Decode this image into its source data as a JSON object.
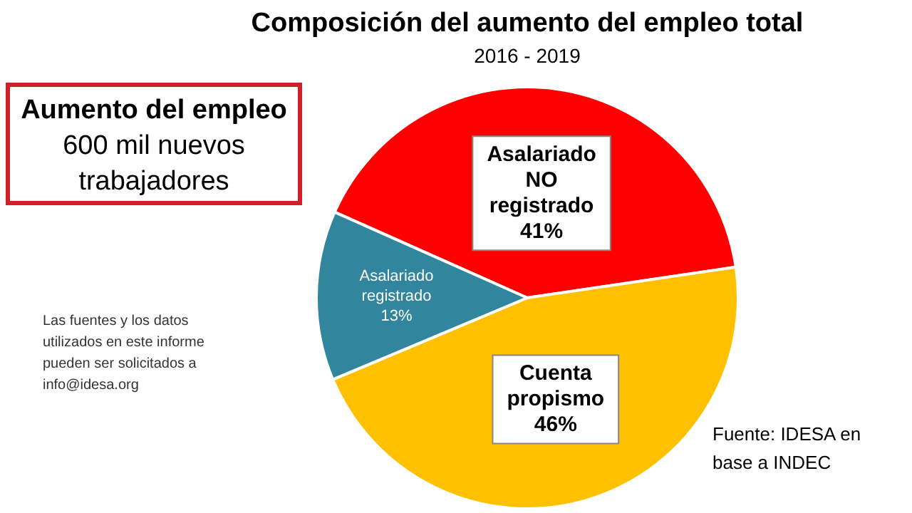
{
  "chart_data": {
    "type": "pie",
    "title": "Composición del aumento del empleo total",
    "subtitle": "2016 - 2019",
    "categories": [
      "Asalariado NO registrado",
      "Cuenta propismo",
      "Asalariado registrado"
    ],
    "values": [
      41,
      46,
      13
    ],
    "colors": [
      "#ff0000",
      "#ffc000",
      "#31859c"
    ],
    "value_labels": [
      "41%",
      "46%",
      "13%"
    ],
    "annotations": [
      "Aumento del empleo\n600 mil nuevos trabajadores",
      "Las fuentes y los datos utilizados en este informe pueden ser solicitados a info@idesa.org",
      "Fuente: IDESA en base a INDEC"
    ],
    "legend": false
  }
}
